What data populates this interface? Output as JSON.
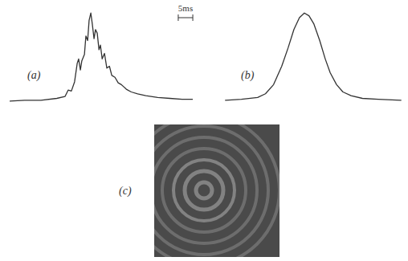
{
  "chart_data": [
    {
      "type": "line",
      "annotation": "(a)",
      "x": [
        0,
        5,
        10.6,
        16.1,
        18.9,
        20,
        21.1,
        22.2,
        23.1,
        23.6,
        24.2,
        24.7,
        25.6,
        26.1,
        26.7,
        27.2,
        27.8,
        28.3,
        28.9,
        29.4,
        30,
        30.6,
        31.1,
        31.7,
        32.5,
        33.3,
        34.2,
        35,
        36.1,
        37.2,
        38.3,
        40,
        41.7,
        43.9,
        46.7,
        50.8,
        55,
        59.2,
        62.8
      ],
      "values": [
        0.04,
        0.05,
        0.05,
        0.07,
        0.09,
        0.16,
        0.15,
        0.25,
        0.45,
        0.5,
        0.38,
        0.48,
        0.55,
        0.75,
        0.7,
        0.92,
        1.0,
        0.88,
        0.72,
        0.82,
        0.78,
        0.6,
        0.65,
        0.5,
        0.56,
        0.4,
        0.42,
        0.32,
        0.3,
        0.24,
        0.22,
        0.17,
        0.14,
        0.12,
        0.1,
        0.08,
        0.07,
        0.06,
        0.06
      ],
      "xlim": [
        0,
        63
      ],
      "ylim": [
        0,
        1.05
      ],
      "tick_labels": false,
      "color": "#333333"
    },
    {
      "type": "line",
      "annotation": "(b)",
      "x": [
        0.6,
        6.1,
        11.7,
        14.4,
        17.2,
        20,
        22.2,
        24.2,
        26.1,
        27.8,
        29.4,
        31.1,
        33.1,
        35,
        36.7,
        38.9,
        41.1,
        43.9,
        47.8,
        53.3,
        61.1
      ],
      "values": [
        0.05,
        0.06,
        0.08,
        0.12,
        0.22,
        0.42,
        0.62,
        0.82,
        0.95,
        1.0,
        0.97,
        0.88,
        0.7,
        0.5,
        0.35,
        0.22,
        0.14,
        0.1,
        0.07,
        0.06,
        0.05
      ],
      "xlim": [
        0,
        62
      ],
      "ylim": [
        0,
        1.05
      ],
      "tick_labels": false,
      "color": "#333333"
    }
  ],
  "scale_bar": {
    "value": 5,
    "label": "5ms"
  },
  "image": {
    "label": "(c)"
  }
}
